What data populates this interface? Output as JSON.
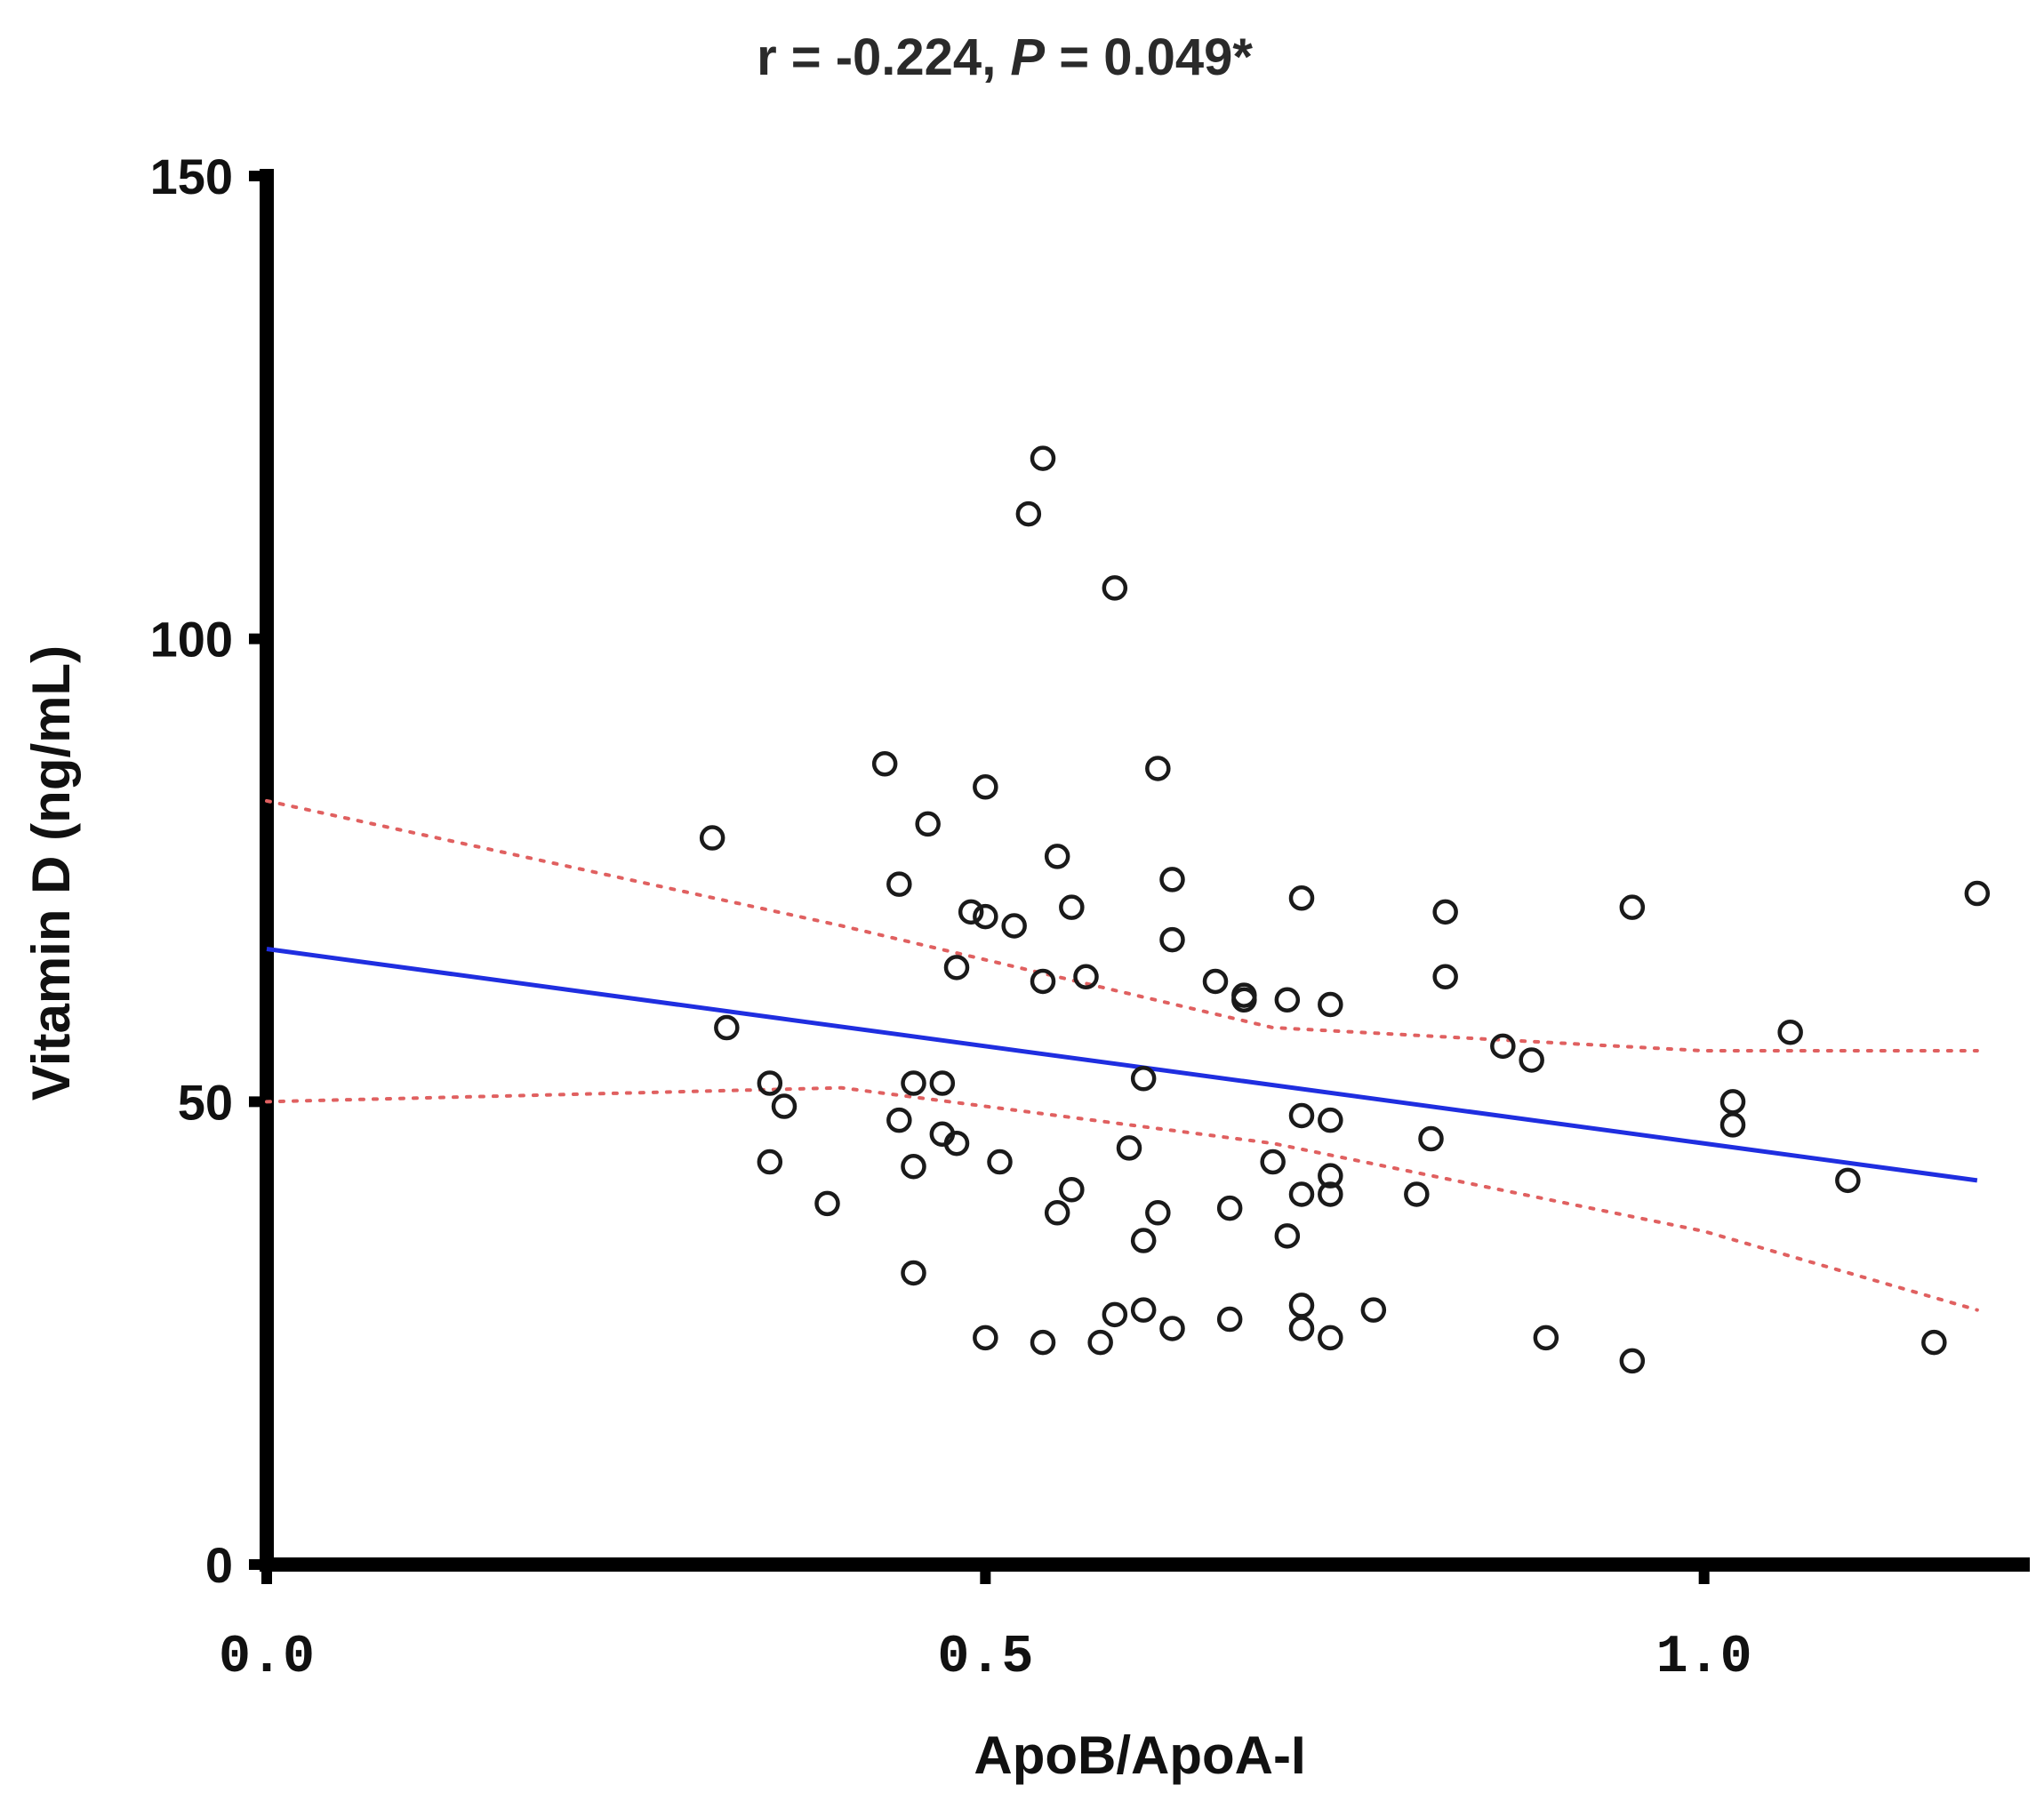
{
  "chart_data": {
    "type": "scatter",
    "title": "r = -0.224, P = 0.049*",
    "title_parts": {
      "prefix": "r = -0.224, ",
      "p_symbol": "P",
      "suffix": " = 0.049*"
    },
    "xlabel": "ApoB/ApoA-I",
    "ylabel": "Vitamin D (ng/mL)",
    "xlim": [
      0.0,
      1.2
    ],
    "ylim": [
      0,
      150
    ],
    "x_ticks": [
      0.0,
      0.5,
      1.0
    ],
    "x_tick_labels": [
      "0.0",
      "0.5",
      "1.0"
    ],
    "y_ticks": [
      0,
      50,
      100,
      150
    ],
    "y_tick_labels": [
      "0",
      "50",
      "100",
      "150"
    ],
    "grid": false,
    "colors": {
      "points": "#1a1a1a",
      "fit": "#1f2ee0",
      "ci": "#e06060",
      "axes": "#000000"
    },
    "points": [
      [
        0.31,
        78.5
      ],
      [
        0.32,
        58.0
      ],
      [
        0.35,
        52.0
      ],
      [
        0.36,
        49.5
      ],
      [
        0.35,
        43.5
      ],
      [
        0.39,
        39.0
      ],
      [
        0.43,
        86.5
      ],
      [
        0.44,
        73.5
      ],
      [
        0.46,
        80.0
      ],
      [
        0.49,
        70.5
      ],
      [
        0.5,
        70.0
      ],
      [
        0.5,
        84.0
      ],
      [
        0.52,
        69.0
      ],
      [
        0.48,
        64.5
      ],
      [
        0.54,
        63.0
      ],
      [
        0.55,
        76.5
      ],
      [
        0.56,
        71.0
      ],
      [
        0.57,
        63.5
      ],
      [
        0.45,
        52.0
      ],
      [
        0.47,
        52.0
      ],
      [
        0.44,
        48.0
      ],
      [
        0.47,
        46.5
      ],
      [
        0.48,
        45.5
      ],
      [
        0.45,
        43.0
      ],
      [
        0.51,
        43.5
      ],
      [
        0.45,
        31.5
      ],
      [
        0.5,
        24.5
      ],
      [
        0.54,
        24.0
      ],
      [
        0.58,
        24.0
      ],
      [
        0.59,
        27.0
      ],
      [
        0.61,
        27.5
      ],
      [
        0.63,
        25.5
      ],
      [
        0.56,
        40.5
      ],
      [
        0.55,
        38.0
      ],
      [
        0.6,
        45.0
      ],
      [
        0.61,
        35.0
      ],
      [
        0.62,
        38.0
      ],
      [
        0.61,
        52.5
      ],
      [
        0.53,
        113.5
      ],
      [
        0.54,
        119.5
      ],
      [
        0.59,
        105.5
      ],
      [
        0.62,
        86.0
      ],
      [
        0.63,
        74.0
      ],
      [
        0.63,
        67.5
      ],
      [
        0.66,
        63.0
      ],
      [
        0.68,
        61.5
      ],
      [
        0.68,
        61.0
      ],
      [
        0.67,
        38.5
      ],
      [
        0.67,
        26.5
      ],
      [
        0.7,
        43.5
      ],
      [
        0.71,
        35.5
      ],
      [
        0.72,
        48.5
      ],
      [
        0.72,
        40.0
      ],
      [
        0.72,
        28.0
      ],
      [
        0.72,
        25.5
      ],
      [
        0.71,
        61.0
      ],
      [
        0.72,
        72.0
      ],
      [
        0.74,
        60.5
      ],
      [
        0.74,
        48.0
      ],
      [
        0.74,
        42.0
      ],
      [
        0.74,
        40.0
      ],
      [
        0.74,
        24.5
      ],
      [
        0.77,
        27.5
      ],
      [
        0.8,
        40.0
      ],
      [
        0.81,
        46.0
      ],
      [
        0.82,
        70.5
      ],
      [
        0.82,
        63.5
      ],
      [
        0.86,
        56.0
      ],
      [
        0.88,
        54.5
      ],
      [
        0.89,
        24.5
      ],
      [
        0.95,
        71.0
      ],
      [
        0.95,
        22.0
      ],
      [
        1.02,
        50.0
      ],
      [
        1.02,
        47.5
      ],
      [
        1.06,
        57.5
      ],
      [
        1.1,
        41.5
      ],
      [
        1.16,
        24.0
      ],
      [
        1.19,
        72.5
      ]
    ],
    "fit_line": {
      "x": [
        0.0,
        1.19
      ],
      "y": [
        66.5,
        41.5
      ]
    },
    "ci_upper": {
      "x": [
        0.0,
        0.4,
        0.7,
        1.0,
        1.19
      ],
      "y": [
        82.5,
        69.0,
        58.0,
        55.5,
        55.5
      ]
    },
    "ci_lower": {
      "x": [
        0.0,
        0.4,
        0.7,
        1.0,
        1.19
      ],
      "y": [
        50.0,
        51.5,
        45.5,
        36.0,
        27.5
      ]
    }
  }
}
